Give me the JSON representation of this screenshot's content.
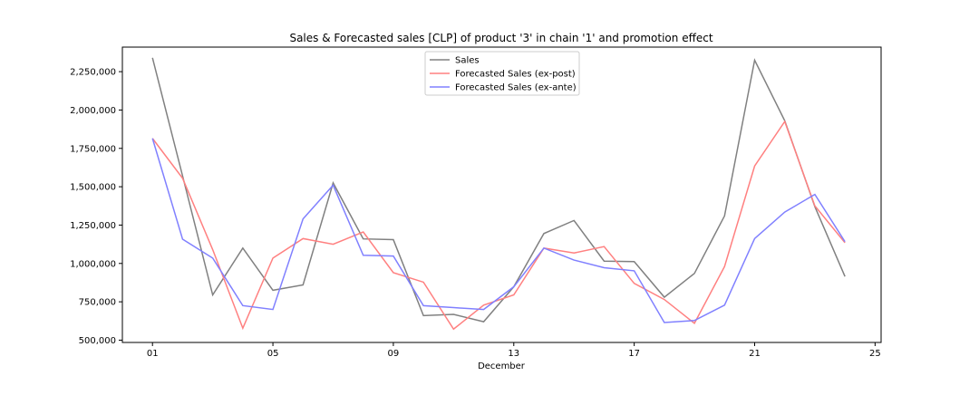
{
  "chart_data": {
    "type": "line",
    "title": "Sales & Forecasted sales [CLP] of product '3' in chain '1' and promotion effect",
    "xlabel": "December",
    "ylabel": "",
    "x": [
      1,
      2,
      3,
      4,
      5,
      6,
      7,
      8,
      9,
      10,
      11,
      12,
      13,
      14,
      15,
      16,
      17,
      18,
      19,
      20,
      21,
      22,
      23,
      24
    ],
    "xlim": [
      0.0,
      25.2
    ],
    "ylim": [
      485000,
      2410000
    ],
    "x_ticks": [
      {
        "value": 1,
        "label": "01"
      },
      {
        "value": 5,
        "label": "05"
      },
      {
        "value": 9,
        "label": "09"
      },
      {
        "value": 13,
        "label": "13"
      },
      {
        "value": 17,
        "label": "17"
      },
      {
        "value": 21,
        "label": "21"
      },
      {
        "value": 25,
        "label": "25"
      }
    ],
    "y_ticks": [
      {
        "value": 500000,
        "label": "500,000"
      },
      {
        "value": 750000,
        "label": "750,000"
      },
      {
        "value": 1000000,
        "label": "1,000,000"
      },
      {
        "value": 1250000,
        "label": "1,250,000"
      },
      {
        "value": 1500000,
        "label": "1,500,000"
      },
      {
        "value": 1750000,
        "label": "1,750,000"
      },
      {
        "value": 2000000,
        "label": "2,000,000"
      },
      {
        "value": 2250000,
        "label": "2,250,000"
      }
    ],
    "grid": false,
    "legend_position": "top-center",
    "series": [
      {
        "name": "Sales",
        "color": "#808080",
        "values": [
          2340000,
          1570000,
          795000,
          1100000,
          825000,
          860000,
          1525000,
          1160000,
          1155000,
          660000,
          668000,
          620000,
          848000,
          1195000,
          1280000,
          1015000,
          1012000,
          780000,
          935000,
          1310000,
          2325000,
          1930000,
          1370000,
          915000
        ]
      },
      {
        "name": "Forecasted Sales (ex-post)",
        "color": "#ff8080",
        "values": [
          1815000,
          1555000,
          1090000,
          578000,
          1035000,
          1162000,
          1125000,
          1205000,
          940000,
          878000,
          572000,
          728000,
          795000,
          1100000,
          1068000,
          1110000,
          870000,
          765000,
          610000,
          980000,
          1635000,
          1925000,
          1375000,
          1135000
        ]
      },
      {
        "name": "Forecasted Sales (ex-ante)",
        "color": "#8080ff",
        "values": [
          1815000,
          1158000,
          1035000,
          725000,
          700000,
          1290000,
          1510000,
          1053000,
          1048000,
          725000,
          712000,
          700000,
          848000,
          1100000,
          1022000,
          972000,
          952000,
          615000,
          628000,
          728000,
          1162000,
          1335000,
          1450000,
          1142000
        ]
      }
    ]
  }
}
